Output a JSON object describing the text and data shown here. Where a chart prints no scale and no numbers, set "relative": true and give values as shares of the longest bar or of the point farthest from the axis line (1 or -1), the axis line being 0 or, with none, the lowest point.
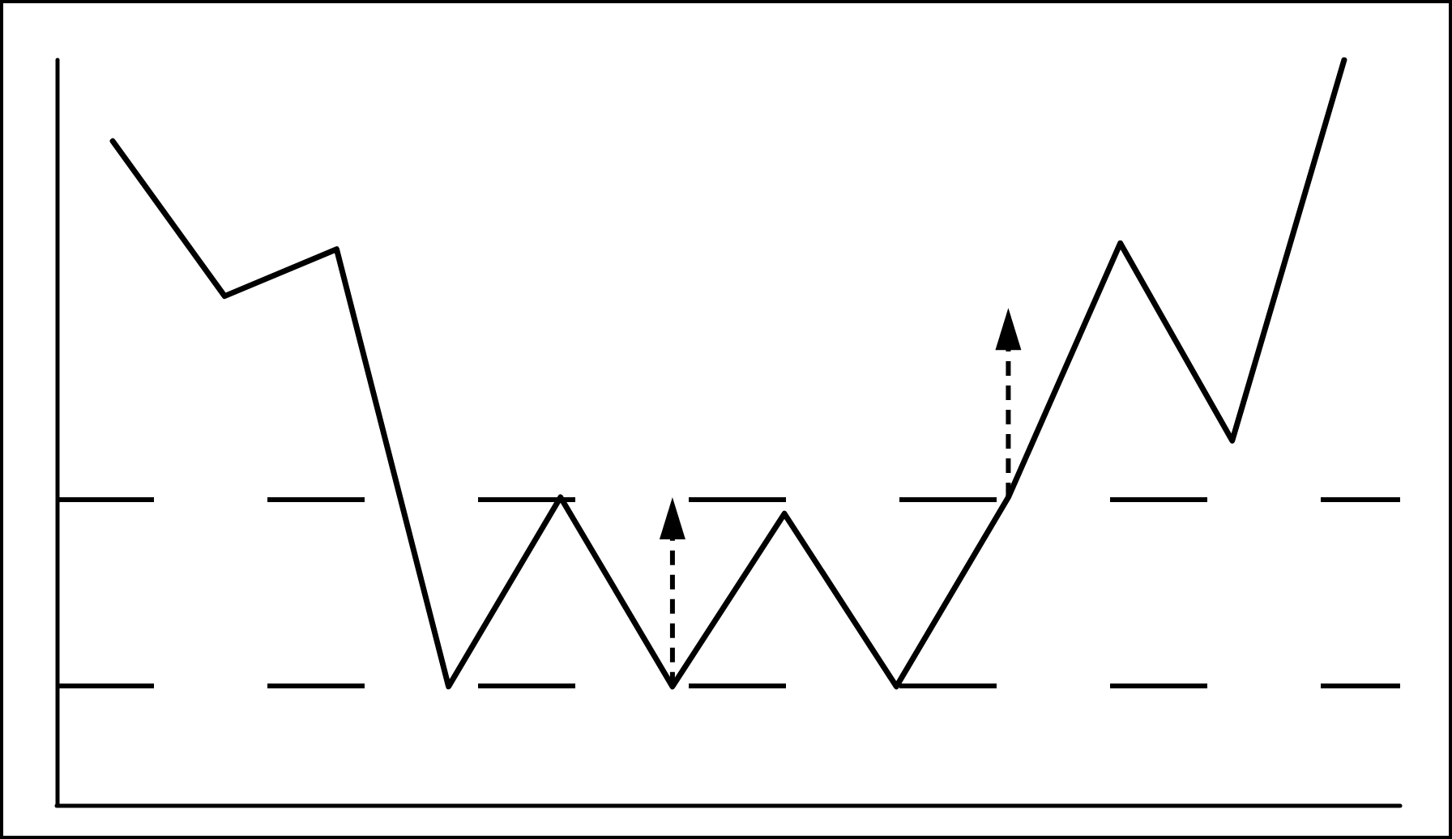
{
  "chart_data": {
    "type": "line",
    "relative": true,
    "categories": [
      null,
      null,
      null,
      null,
      null,
      null,
      null,
      null,
      null,
      null,
      null,
      null
    ],
    "series": [
      {
        "color": "#000000",
        "values": [
          0.891,
          0.683,
          0.746,
          0.159,
          0.413,
          0.159,
          0.391,
          0.159,
          0.413,
          0.754,
          0.489,
          1
        ]
      }
    ],
    "ref_lines": [
      {
        "axis": "y",
        "value": 0.159,
        "color": "#000000",
        "line_style": "dashed"
      },
      {
        "axis": "y",
        "value": 0.413,
        "color": "#000000",
        "line_style": "dashed"
      }
    ],
    "marker": "none",
    "line_style": "solid",
    "grid": false
  }
}
